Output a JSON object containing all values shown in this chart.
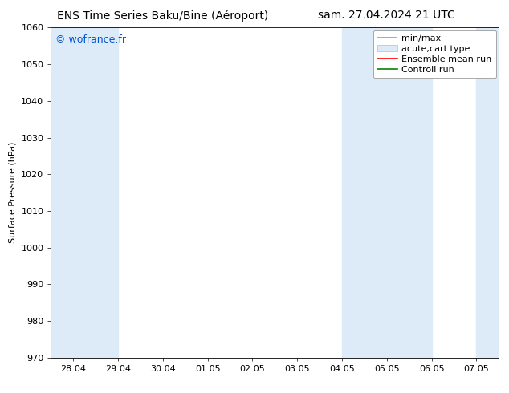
{
  "title_left": "ENS Time Series Baku/Bine (Aéroport)",
  "title_right": "sam. 27.04.2024 21 UTC",
  "ylabel": "Surface Pressure (hPa)",
  "ylim": [
    970,
    1060
  ],
  "yticks": [
    970,
    980,
    990,
    1000,
    1010,
    1020,
    1030,
    1040,
    1050,
    1060
  ],
  "xtick_labels": [
    "28.04",
    "29.04",
    "30.04",
    "01.05",
    "02.05",
    "03.05",
    "04.05",
    "05.05",
    "06.05",
    "07.05"
  ],
  "xtick_positions": [
    0,
    1,
    2,
    3,
    4,
    5,
    6,
    7,
    8,
    9
  ],
  "xlim": [
    -0.5,
    9.5
  ],
  "watermark": "© wofrance.fr",
  "watermark_color": "#0055cc",
  "bg_color": "#ffffff",
  "plot_bg_color": "#ffffff",
  "shaded_bands": [
    {
      "x_start": -0.5,
      "x_end": 1.0,
      "color": "#ddeaf7"
    },
    {
      "x_start": 6.0,
      "x_end": 8.0,
      "color": "#ddeaf7"
    },
    {
      "x_start": 9.0,
      "x_end": 9.5,
      "color": "#ddeaf7"
    }
  ],
  "legend_items": [
    {
      "label": "min/max",
      "type": "errorbar",
      "color": "#999999"
    },
    {
      "label": "acute;cart type",
      "type": "bar",
      "color": "#ddeaf7"
    },
    {
      "label": "Ensemble mean run",
      "type": "line",
      "color": "#ff0000"
    },
    {
      "label": "Controll run",
      "type": "line",
      "color": "#008800"
    }
  ],
  "title_fontsize": 10,
  "tick_fontsize": 8,
  "legend_fontsize": 8,
  "ylabel_fontsize": 8,
  "watermark_fontsize": 9
}
